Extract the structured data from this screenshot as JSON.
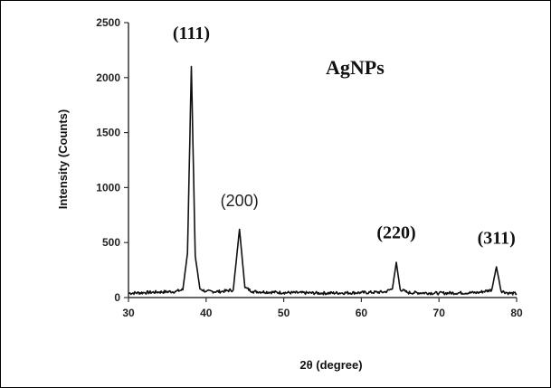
{
  "chart_data": {
    "type": "line",
    "xlabel": "2θ (degree)",
    "ylabel": "Intensity (Counts)",
    "xlim": [
      30,
      80
    ],
    "ylim": [
      0,
      2500
    ],
    "xticks": [
      "30",
      "40",
      "50",
      "60",
      "70",
      "80"
    ],
    "yticks": [
      "0",
      "500",
      "1000",
      "1500",
      "2000",
      "2500"
    ],
    "grid": false,
    "series": [
      {
        "x": [
          30,
          32,
          34,
          36,
          37,
          37.6,
          38.1,
          38.6,
          39.2,
          40,
          42,
          43.5,
          44.3,
          45,
          46,
          50,
          55,
          60,
          63,
          64,
          64.5,
          65,
          66,
          70,
          75,
          76.8,
          77.4,
          78,
          79,
          80
        ],
        "y": [
          40,
          45,
          50,
          55,
          70,
          400,
          2100,
          380,
          80,
          55,
          55,
          70,
          620,
          90,
          55,
          45,
          40,
          45,
          50,
          80,
          320,
          75,
          45,
          40,
          45,
          70,
          280,
          60,
          40,
          35
        ]
      }
    ],
    "annotations": [
      {
        "text": "(111)",
        "x": 38.1,
        "y": 2350
      },
      {
        "text": "(200)",
        "x": 44.3,
        "y": 830
      },
      {
        "text": "(220)",
        "x": 64.5,
        "y": 540
      },
      {
        "text": "(311)",
        "x": 77.4,
        "y": 490
      }
    ],
    "label": "AgNPs"
  },
  "colors": {
    "line": "#111111",
    "axis": "#333333"
  }
}
